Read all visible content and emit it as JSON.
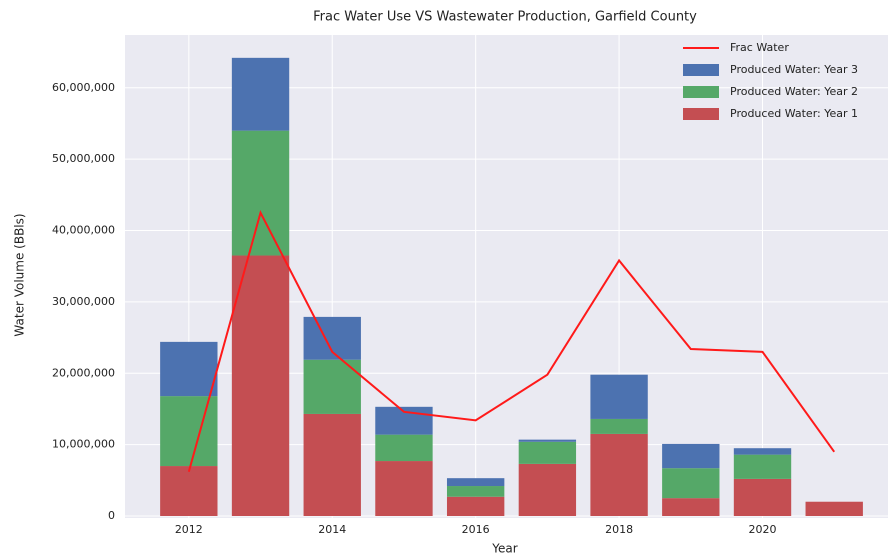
{
  "chart_data": {
    "type": "bar",
    "title": "Frac Water Use VS Wastewater Production, Garfield County",
    "x_label": "Year",
    "y_label": "Water Volume (BBls)",
    "x": [
      2012,
      2013,
      2014,
      2015,
      2016,
      2017,
      2018,
      2019,
      2020,
      2021
    ],
    "series": [
      {
        "name": "Produced Water: Year 1",
        "type": "bar",
        "color": "#c44e52",
        "values": [
          7000000,
          36500000,
          14300000,
          7700000,
          2700000,
          7300000,
          11500000,
          2500000,
          5200000,
          2000000
        ]
      },
      {
        "name": "Produced Water: Year 2",
        "type": "bar",
        "color": "#55a868",
        "values": [
          9800000,
          17500000,
          7600000,
          3700000,
          1500000,
          3100000,
          2100000,
          4200000,
          3400000,
          0
        ]
      },
      {
        "name": "Produced Water: Year 3",
        "type": "bar",
        "color": "#4c72b0",
        "values": [
          7600000,
          10200000,
          6000000,
          3900000,
          1100000,
          300000,
          6200000,
          3400000,
          900000,
          0
        ]
      },
      {
        "name": "Frac Water",
        "type": "line",
        "color": "#ff1a1a",
        "values": [
          6200000,
          42500000,
          23000000,
          14600000,
          13400000,
          19800000,
          35800000,
          23400000,
          23000000,
          9000000
        ]
      }
    ],
    "xlim": [
      2011.11,
      2021.75
    ],
    "xticks": [
      2012,
      2014,
      2016,
      2018,
      2020
    ],
    "ylim": [
      0,
      67400000
    ],
    "yticks": [
      0,
      {
        "value": 10000000,
        "label": "10,000,000"
      },
      {
        "value": 20000000,
        "label": "20,000,000"
      },
      {
        "value": 30000000,
        "label": "30,000,000"
      },
      {
        "value": 40000000,
        "label": "40,000,000"
      },
      {
        "value": 50000000,
        "label": "50,000,000"
      },
      {
        "value": 60000000,
        "label": "60,000,000"
      }
    ],
    "grid": true,
    "legend": "upper right"
  }
}
